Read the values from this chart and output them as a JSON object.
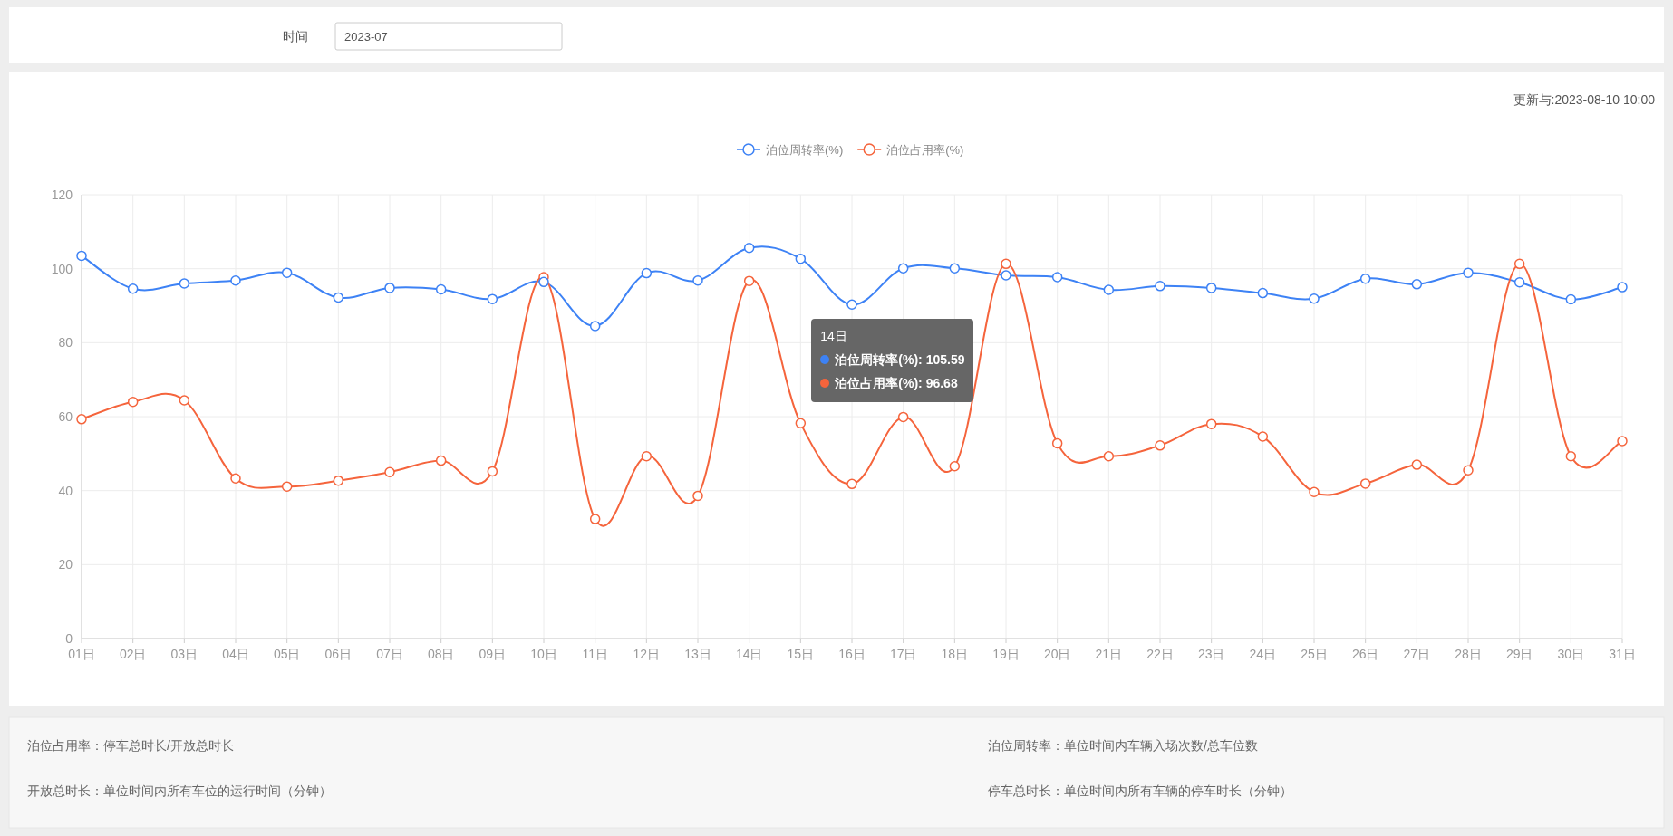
{
  "chart_data": {
    "type": "line",
    "categories": [
      "01日",
      "02日",
      "03日",
      "04日",
      "05日",
      "06日",
      "07日",
      "08日",
      "09日",
      "10日",
      "11日",
      "12日",
      "13日",
      "14日",
      "15日",
      "16日",
      "17日",
      "18日",
      "19日",
      "20日",
      "21日",
      "22日",
      "23日",
      "24日",
      "25日",
      "26日",
      "27日",
      "28日",
      "29日",
      "30日",
      "31日"
    ],
    "series": [
      {
        "name": "泊位周转率(%)",
        "color": "#3d82f5",
        "values": [
          103.5,
          94.6,
          96.0,
          96.8,
          98.9,
          92.2,
          94.8,
          94.4,
          91.8,
          96.4,
          84.5,
          98.8,
          96.8,
          105.6,
          102.7,
          90.3,
          100.1,
          100.1,
          98.2,
          97.7,
          94.3,
          95.3,
          94.8,
          93.4,
          91.9,
          97.3,
          95.8,
          98.9,
          96.3,
          91.7,
          95.0
        ]
      },
      {
        "name": "泊位占用率(%)",
        "color": "#f5643c",
        "values": [
          59.3,
          64.0,
          64.4,
          43.3,
          41.1,
          42.7,
          45.0,
          48.1,
          45.2,
          97.7,
          32.3,
          49.3,
          38.6,
          96.7,
          58.2,
          41.8,
          59.9,
          46.6,
          101.3,
          52.8,
          49.3,
          52.2,
          58.0,
          54.6,
          39.6,
          41.9,
          47.0,
          45.5,
          101.3,
          49.3,
          53.4
        ]
      }
    ],
    "ylim": [
      0,
      120
    ],
    "yticks": [
      0,
      20,
      40,
      60,
      80,
      100,
      120
    ],
    "grid": true,
    "legend": "top",
    "marker": "circle",
    "line_style": "solid",
    "annotations": [
      "时间",
      "2023-07",
      "更新与:2023-08-10 10:00",
      "14日",
      "泊位周转率(%): 105.59",
      "泊位占用率(%): 96.68",
      "泊位占用率：停车总时长/开放总时长",
      "泊位周转率：单位时间内车辆入场次数/总车位数",
      "开放总时长：单位时间内所有车位的运行时间（分钟）",
      "停车总时长：单位时间内所有车辆的停车时长（分钟）"
    ]
  }
}
